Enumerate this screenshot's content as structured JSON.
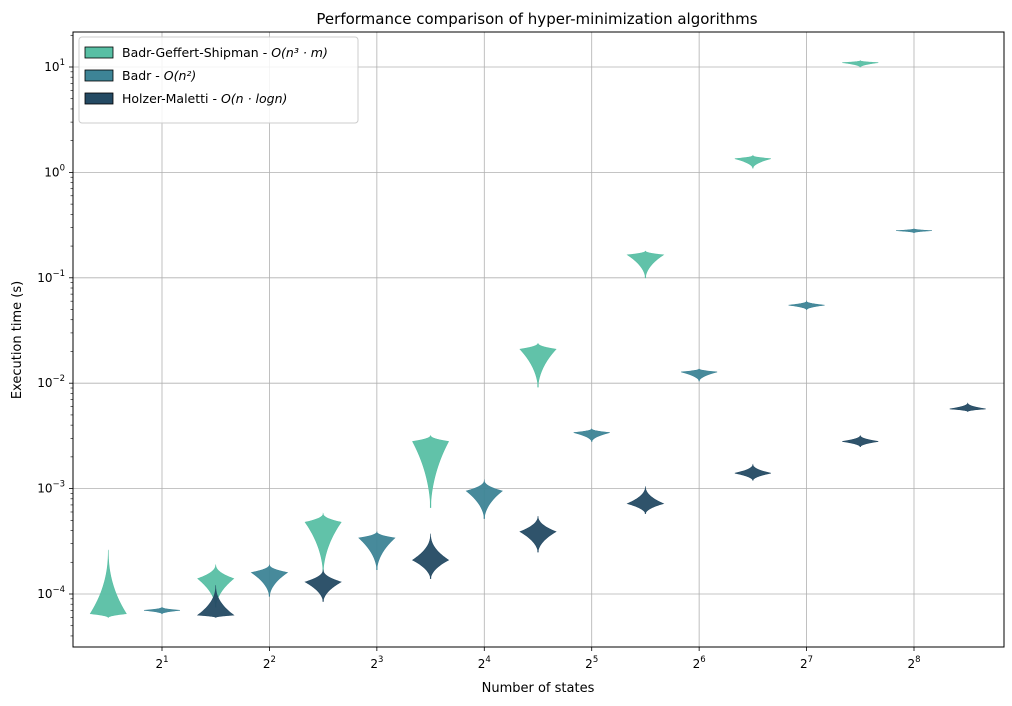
{
  "chart_data": {
    "type": "violin",
    "title": "Performance comparison of hyper-minimization algorithms",
    "xlabel": "Number of states",
    "ylabel": "Execution time (s)",
    "x_scale": "log2",
    "y_scale": "log10",
    "x_ticks": [
      {
        "base": "2",
        "exp": "1",
        "value": 2
      },
      {
        "base": "2",
        "exp": "2",
        "value": 4
      },
      {
        "base": "2",
        "exp": "3",
        "value": 8
      },
      {
        "base": "2",
        "exp": "4",
        "value": 16
      },
      {
        "base": "2",
        "exp": "5",
        "value": 32
      },
      {
        "base": "2",
        "exp": "6",
        "value": 64
      },
      {
        "base": "2",
        "exp": "7",
        "value": 128
      },
      {
        "base": "2",
        "exp": "8",
        "value": 256
      }
    ],
    "y_ticks": [
      {
        "base": "10",
        "exp": "−4",
        "value": 0.0001
      },
      {
        "base": "10",
        "exp": "−3",
        "value": 0.001
      },
      {
        "base": "10",
        "exp": "−2",
        "value": 0.01
      },
      {
        "base": "10",
        "exp": "−1",
        "value": 0.1
      },
      {
        "base": "10",
        "exp": "0",
        "value": 1
      },
      {
        "base": "10",
        "exp": "1",
        "value": 10
      }
    ],
    "ylim": [
      3e-05,
      21
    ],
    "grid": true,
    "legend_position": "top-left",
    "series": [
      {
        "legend_text": "Badr-Geffert-Shipman - ",
        "legend_math": "O(n³ · m)",
        "color": "#58bfa4",
        "medians": [
          6.5e-05,
          0.00014,
          0.00048,
          0.0028,
          0.021,
          0.165,
          1.35,
          11.0
        ],
        "mins": [
          6e-05,
          7.5e-05,
          0.00016,
          0.00066,
          0.0092,
          0.1,
          1.1,
          10.0
        ],
        "maxs": [
          0.00026,
          0.00019,
          0.00058,
          0.0032,
          0.024,
          0.18,
          1.45,
          11.5
        ]
      },
      {
        "legend_text": "Badr - ",
        "legend_math": "O(n²)",
        "color": "#3d8496",
        "medians": [
          7e-05,
          0.00016,
          0.00034,
          0.00095,
          0.0034,
          0.0128,
          0.055,
          0.28
        ],
        "mins": [
          6.5e-05,
          9.5e-05,
          0.00017,
          0.00052,
          0.0028,
          0.0105,
          0.05,
          0.27
        ],
        "maxs": [
          7.5e-05,
          0.00019,
          0.00039,
          0.0012,
          0.0037,
          0.0137,
          0.06,
          0.29
        ]
      },
      {
        "legend_text": "Holzer-Maletti - ",
        "legend_math": "O(n · logn)",
        "color": "#244a63",
        "medians": [
          6.3e-05,
          0.00013,
          0.00021,
          0.00039,
          0.00072,
          0.0014,
          0.0028,
          0.0057
        ],
        "mins": [
          6e-05,
          8.5e-05,
          0.00014,
          0.00025,
          0.00058,
          0.0012,
          0.0025,
          0.0054
        ],
        "maxs": [
          0.00012,
          0.00017,
          0.00037,
          0.00055,
          0.00105,
          0.0017,
          0.0032,
          0.0065
        ]
      }
    ]
  }
}
